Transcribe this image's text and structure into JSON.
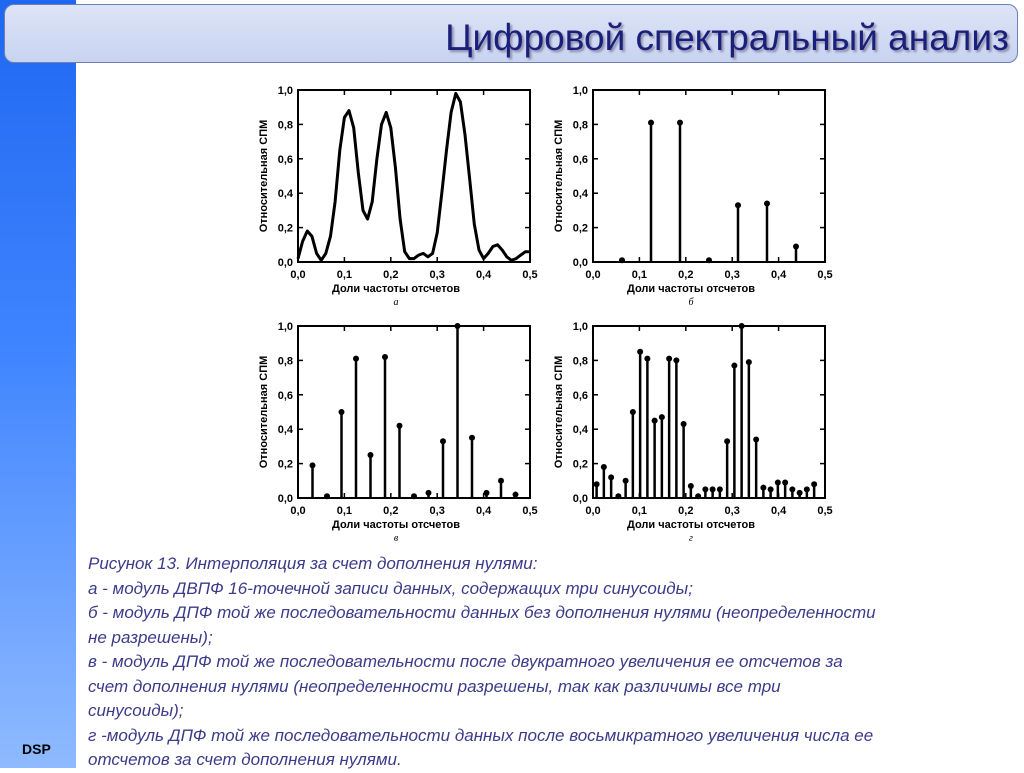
{
  "slide": {
    "title": "Цифровой спектральный анализ",
    "footer_label": "DSP"
  },
  "chart_data": [
    {
      "id": "a",
      "type": "line",
      "panel_label": "а",
      "xlabel": "Доли частоты отсчетов",
      "ylabel": "Относительная СПМ",
      "xlim": [
        0,
        0.5
      ],
      "ylim": [
        0,
        1.0
      ],
      "xticks": [
        "0,0",
        "0,1",
        "0,2",
        "0,3",
        "0,4",
        "0,5"
      ],
      "yticks": [
        "0,0",
        "0,2",
        "0,4",
        "0,6",
        "0,8",
        "1,0"
      ],
      "x": [
        0,
        0.01,
        0.02,
        0.03,
        0.04,
        0.05,
        0.06,
        0.07,
        0.08,
        0.09,
        0.1,
        0.11,
        0.12,
        0.13,
        0.14,
        0.15,
        0.16,
        0.17,
        0.18,
        0.19,
        0.2,
        0.21,
        0.22,
        0.23,
        0.24,
        0.25,
        0.26,
        0.27,
        0.28,
        0.29,
        0.3,
        0.31,
        0.32,
        0.33,
        0.34,
        0.35,
        0.36,
        0.37,
        0.38,
        0.39,
        0.4,
        0.41,
        0.42,
        0.43,
        0.44,
        0.45,
        0.46,
        0.47,
        0.48,
        0.49,
        0.5
      ],
      "y": [
        0.02,
        0.12,
        0.18,
        0.15,
        0.05,
        0.01,
        0.05,
        0.15,
        0.35,
        0.65,
        0.84,
        0.88,
        0.78,
        0.52,
        0.3,
        0.25,
        0.35,
        0.6,
        0.8,
        0.87,
        0.78,
        0.55,
        0.25,
        0.06,
        0.02,
        0.02,
        0.04,
        0.05,
        0.03,
        0.05,
        0.17,
        0.4,
        0.65,
        0.87,
        0.98,
        0.93,
        0.74,
        0.48,
        0.22,
        0.07,
        0.02,
        0.05,
        0.09,
        0.1,
        0.07,
        0.03,
        0.01,
        0.02,
        0.04,
        0.06,
        0.06
      ]
    },
    {
      "id": "b",
      "type": "stem",
      "panel_label": "б",
      "xlabel": "Доли частоты отсчетов",
      "ylabel": "Относительная СПМ",
      "xlim": [
        0,
        0.5
      ],
      "ylim": [
        0,
        1.0
      ],
      "xticks": [
        "0,0",
        "0,1",
        "0,2",
        "0,3",
        "0,4",
        "0,5"
      ],
      "yticks": [
        "0,0",
        "0,2",
        "0,4",
        "0,6",
        "0,8",
        "1,0"
      ],
      "x": [
        0.0625,
        0.125,
        0.1875,
        0.25,
        0.3125,
        0.375,
        0.4375
      ],
      "y": [
        0.01,
        0.81,
        0.81,
        0.01,
        0.33,
        0.34,
        0.09
      ]
    },
    {
      "id": "v",
      "type": "stem",
      "panel_label": "в",
      "xlabel": "Доли частоты отсчетов",
      "ylabel": "Относительная СПМ",
      "xlim": [
        0,
        0.5
      ],
      "ylim": [
        0,
        1.0
      ],
      "xticks": [
        "0,0",
        "0,1",
        "0,2",
        "0,3",
        "0,4",
        "0,5"
      ],
      "yticks": [
        "0,0",
        "0,2",
        "0,4",
        "0,6",
        "0,8",
        "1,0"
      ],
      "x": [
        0.03125,
        0.0625,
        0.09375,
        0.125,
        0.15625,
        0.1875,
        0.21875,
        0.25,
        0.28125,
        0.3125,
        0.34375,
        0.375,
        0.40625,
        0.4375,
        0.46875
      ],
      "y": [
        0.19,
        0.01,
        0.5,
        0.81,
        0.25,
        0.82,
        0.42,
        0.01,
        0.03,
        0.33,
        1.0,
        0.35,
        0.03,
        0.1,
        0.02
      ]
    },
    {
      "id": "g",
      "type": "stem",
      "panel_label": "г",
      "xlabel": "Доли частоты отсчетов",
      "ylabel": "Относительная СПМ",
      "xlim": [
        0,
        0.5
      ],
      "ylim": [
        0,
        1.0
      ],
      "xticks": [
        "0,0",
        "0,1",
        "0,2",
        "0,3",
        "0,4",
        "0,5"
      ],
      "yticks": [
        "0,0",
        "0,2",
        "0,4",
        "0,6",
        "0,8",
        "1,0"
      ],
      "x": [
        0.0078,
        0.0234,
        0.0391,
        0.0547,
        0.0703,
        0.0859,
        0.1016,
        0.1172,
        0.1328,
        0.1484,
        0.1641,
        0.1797,
        0.1953,
        0.2109,
        0.2266,
        0.2422,
        0.2578,
        0.2734,
        0.2891,
        0.3047,
        0.3203,
        0.3359,
        0.3516,
        0.3672,
        0.3828,
        0.3984,
        0.4141,
        0.4297,
        0.4453,
        0.4609,
        0.4766
      ],
      "y": [
        0.08,
        0.18,
        0.12,
        0.01,
        0.1,
        0.5,
        0.85,
        0.81,
        0.45,
        0.47,
        0.81,
        0.8,
        0.43,
        0.07,
        0.01,
        0.05,
        0.05,
        0.05,
        0.33,
        0.77,
        1.0,
        0.79,
        0.34,
        0.06,
        0.05,
        0.09,
        0.09,
        0.05,
        0.03,
        0.05,
        0.08
      ]
    }
  ],
  "caption": {
    "lines": [
      "Рисунок 13. Интерполяция за счет дополнения нулями:",
      "а - модуль ДВПФ 16-точечной записи данных, содержащих три синусоиды;",
      "б - модуль ДПФ той же последовательности данных без дополнения нулями (неопределенности",
      "не разрешены);",
      "в - модуль ДПФ той же последовательности после двукратного увеличения ее отсчетов за",
      "счет дополнения нулями (неопределенности разрешены, так как различимы все три",
      "синусоиды);",
      "г -модуль ДПФ той же последовательности данных после восьмикратного увеличения числа ее",
      "отсчетов за счет дополнения нулями."
    ]
  }
}
